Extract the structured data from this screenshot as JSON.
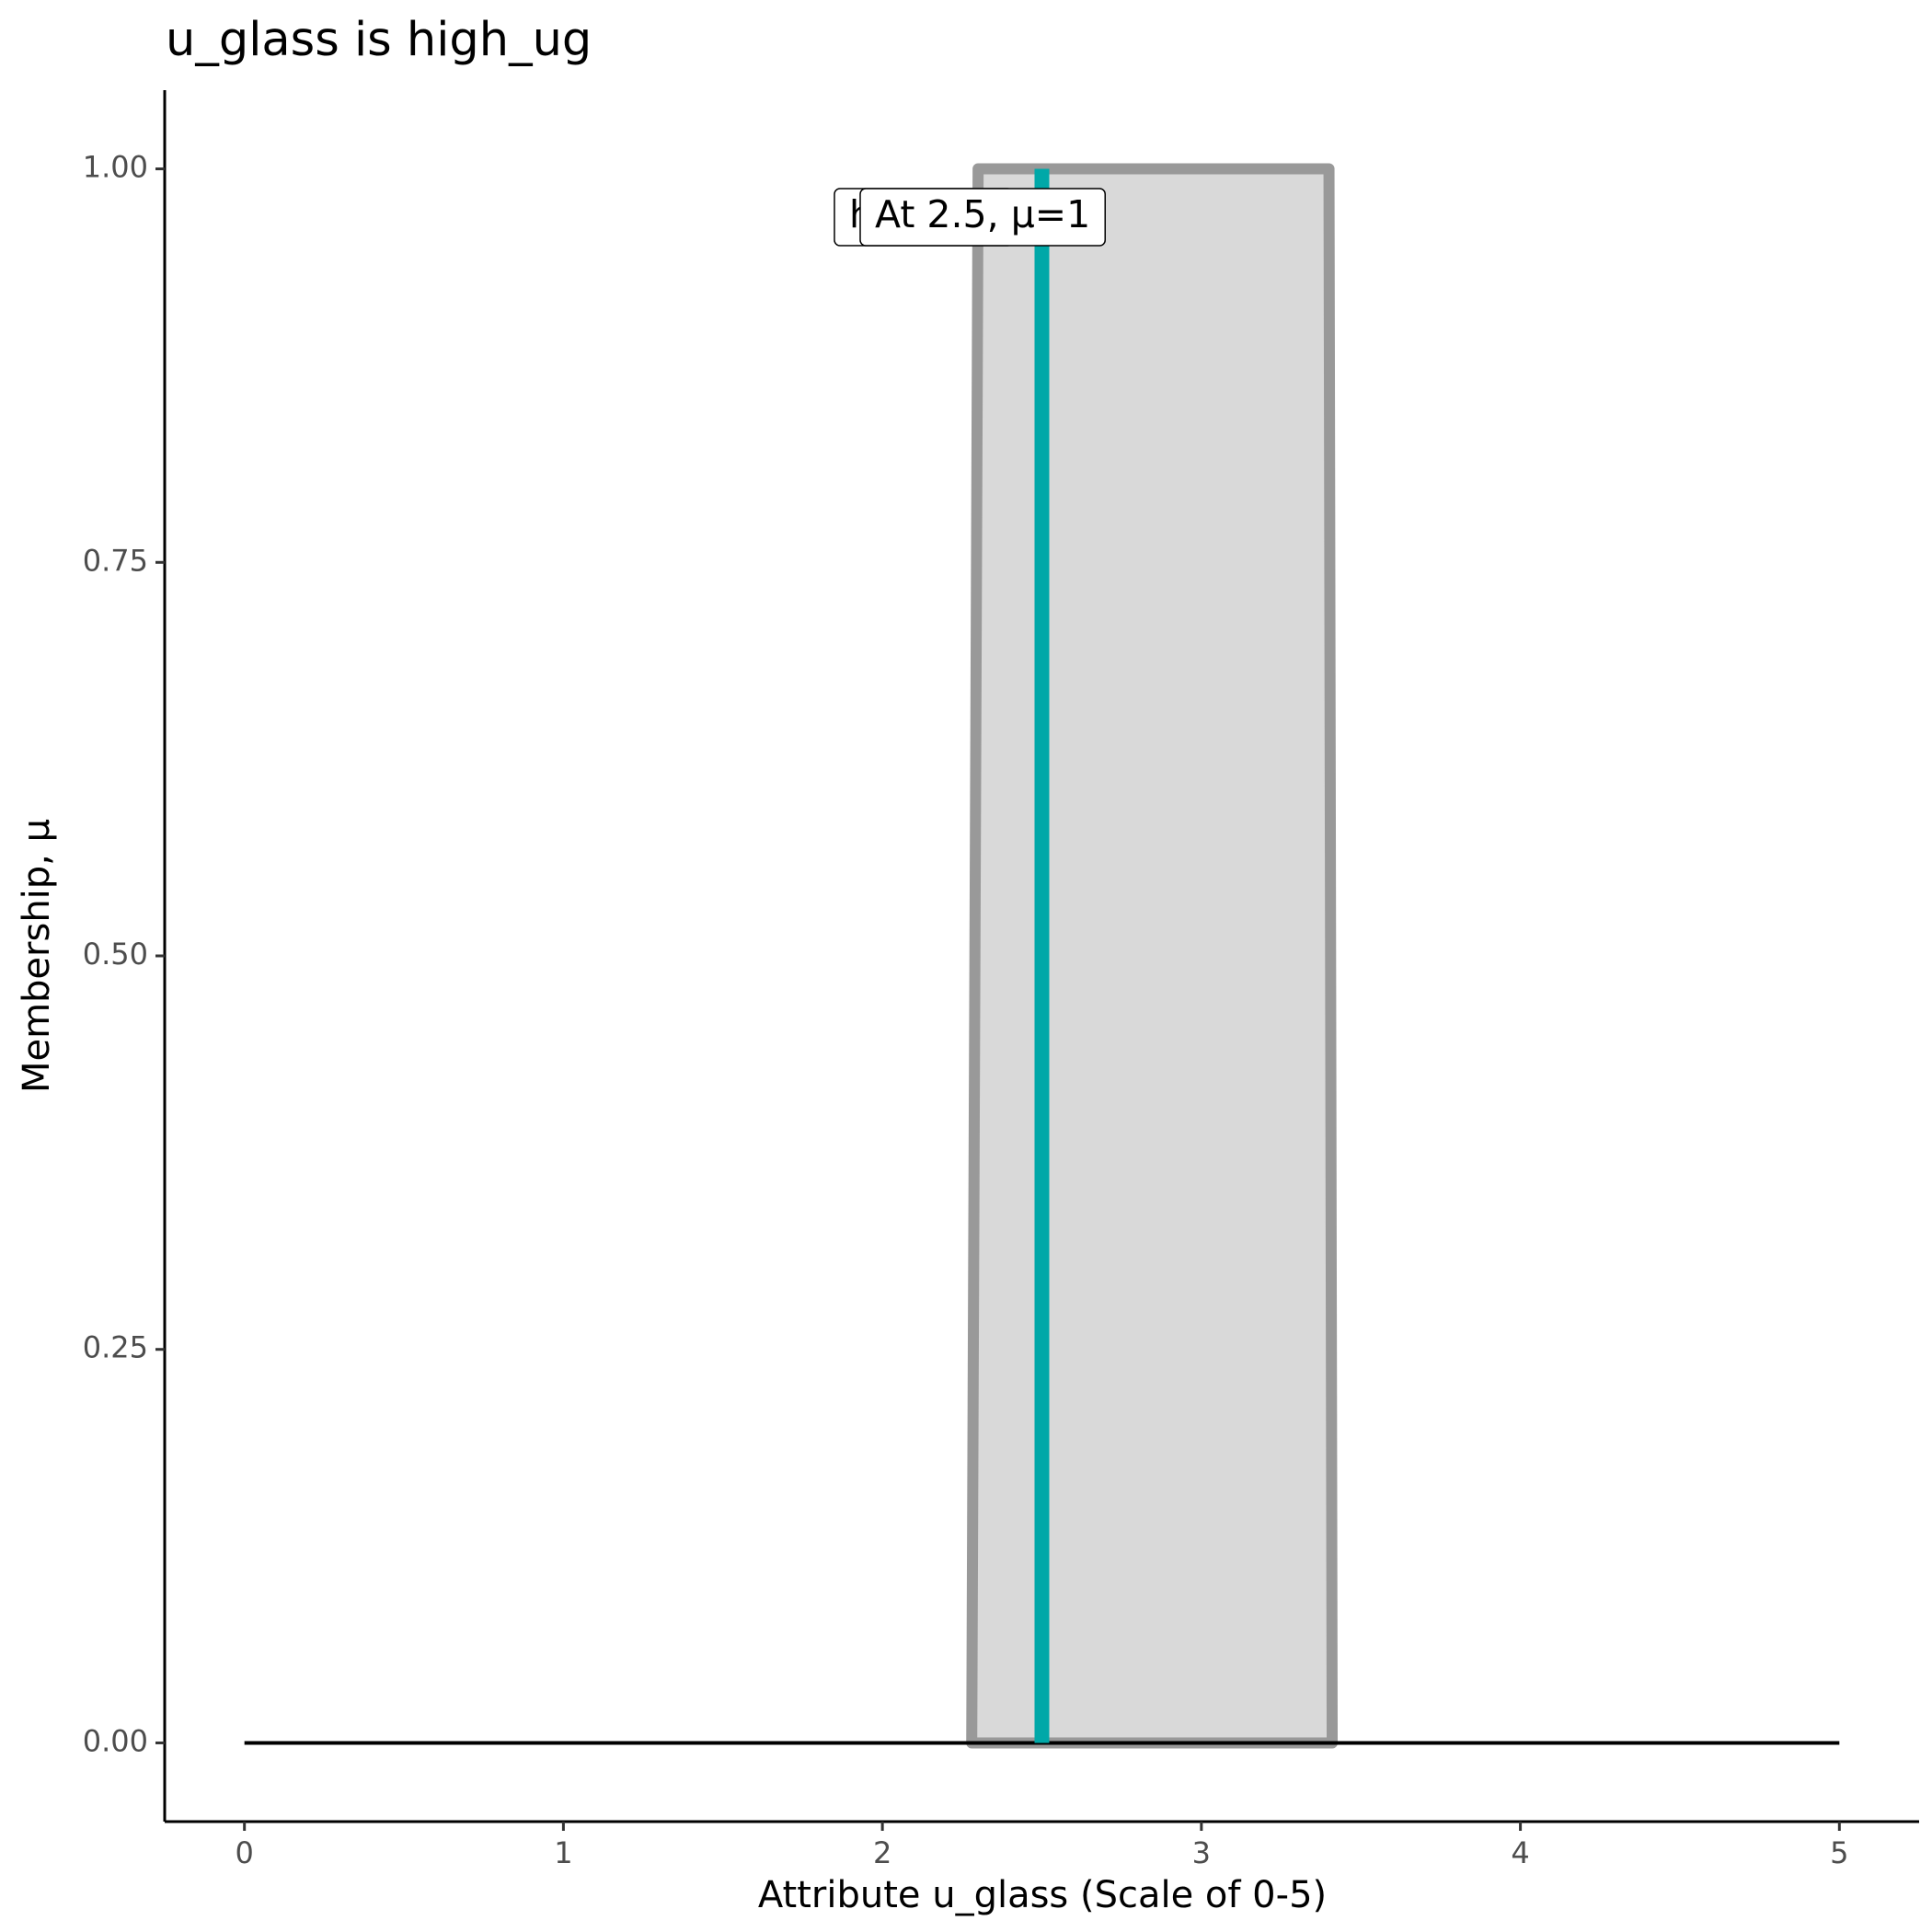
{
  "chart_data": {
    "type": "line",
    "title": "u_glass is high_ug",
    "xlabel": "Attribute u_glass (Scale of 0-5)",
    "ylabel": "Membership, μ",
    "xlim": [
      -0.25,
      5.25
    ],
    "ylim": [
      -0.05,
      1.05
    ],
    "xticks": [
      0,
      1,
      2,
      3,
      4,
      5
    ],
    "yticks": [
      {
        "value": 0,
        "label": "0.00"
      },
      {
        "value": 0.25,
        "label": "0.25"
      },
      {
        "value": 0.5,
        "label": "0.50"
      },
      {
        "value": 0.75,
        "label": "0.75"
      },
      {
        "value": 1,
        "label": "1.00"
      }
    ],
    "series": [
      {
        "x": [
          2.28,
          2.3,
          3.4,
          3.41
        ],
        "values": [
          0,
          1,
          1,
          0
        ],
        "color": "#999999",
        "fill": "#d9d9d9"
      },
      {
        "x": [
          0,
          5
        ],
        "values": [
          0,
          0
        ],
        "color": "#000000"
      },
      {
        "x": [
          2.5,
          2.5
        ],
        "values": [
          0,
          1
        ],
        "color": "#00a8a8"
      }
    ],
    "annotations": [
      "high_ug",
      "At 2.5, μ=1"
    ]
  }
}
